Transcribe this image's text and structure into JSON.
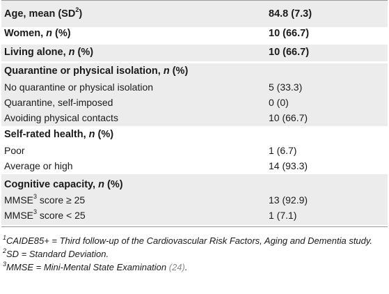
{
  "table": {
    "rows": [
      {
        "label": "Age, mean (SD",
        "label_sup": "2",
        "label_tail": ")",
        "italic": "",
        "value": "84.8 (7.3)"
      },
      {
        "label": "Women, ",
        "italic": "n",
        "label_tail": " (%)",
        "value": "10 (66.7)"
      },
      {
        "label": "Living alone, ",
        "italic": "n",
        "label_tail": " (%)",
        "value": "10 (66.7)"
      },
      {
        "label": "Quarantine or physical isolation, ",
        "italic": "n",
        "label_tail": " (%)",
        "value": ""
      },
      {
        "label": "No quarantine or physical isolation",
        "value": "5 (33.3)"
      },
      {
        "label": "Quarantine, self-imposed",
        "value": "0 (0)"
      },
      {
        "label": "Avoiding physical contacts",
        "value": "10 (66.7)"
      },
      {
        "label": "Self-rated health, ",
        "italic": "n",
        "label_tail": " (%)",
        "value": ""
      },
      {
        "label": "Poor",
        "value": "1 (6.7)"
      },
      {
        "label": "Average or high",
        "value": "14 (93.3)"
      },
      {
        "label": "Cognitive capacity, ",
        "italic": "n",
        "label_tail": " (%)",
        "value": ""
      },
      {
        "label": "MMSE",
        "label_sup": "3",
        "label_tail": " score ≥ 25",
        "value": "13 (92.9)"
      },
      {
        "label": "MMSE",
        "label_sup": "3",
        "label_tail": " score < 25",
        "value": "1 (7.1)"
      }
    ]
  },
  "footnotes": {
    "f1_num": "1",
    "f1_text": "CAIDE85+ = Third follow-up of the Cardiovascular Risk Factors, Aging and Dementia study.",
    "f2_num": "2",
    "f2_text": "SD = Standard Deviation.",
    "f3_num": "3",
    "f3_text": "MMSE = Mini-Mental State Examination ",
    "f3_ref": "(24)",
    "f3_end": "."
  },
  "colors": {
    "band": "#ececec",
    "rule": "#9a9a9a",
    "reference": "#8a8a8a"
  }
}
